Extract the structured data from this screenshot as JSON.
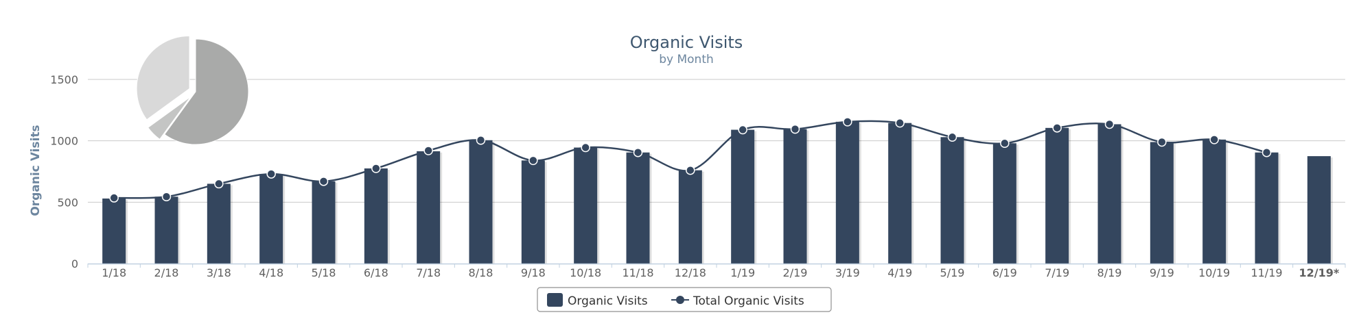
{
  "chart_data": {
    "type": "bar",
    "title": "Organic Visits",
    "subtitle": "by Month",
    "ylabel": "Organic Visits",
    "ylim": [
      0,
      1500
    ],
    "yticks": [
      0,
      500,
      1000,
      1500
    ],
    "grid": true,
    "categories": [
      "1/18",
      "2/18",
      "3/18",
      "4/18",
      "5/18",
      "6/18",
      "7/18",
      "8/18",
      "9/18",
      "10/18",
      "11/18",
      "12/18",
      "1/19",
      "2/19",
      "3/19",
      "4/19",
      "5/19",
      "6/19",
      "7/19",
      "8/19",
      "9/19",
      "10/19",
      "11/19",
      "12/19*"
    ],
    "emphasized_category": "12/19*",
    "series": [
      {
        "name": "Organic Visits",
        "type": "column",
        "color": "#34465e",
        "values": [
          530,
          545,
          650,
          730,
          670,
          775,
          915,
          1005,
          840,
          945,
          905,
          760,
          1090,
          1095,
          1155,
          1145,
          1030,
          980,
          1105,
          1135,
          990,
          1010,
          905,
          875
        ]
      },
      {
        "name": "Total Organic Visits",
        "type": "spline",
        "color": "#34465e",
        "values": [
          535,
          545,
          650,
          730,
          670,
          775,
          920,
          1005,
          840,
          945,
          905,
          760,
          1090,
          1095,
          1155,
          1145,
          1030,
          980,
          1105,
          1135,
          990,
          1010,
          905,
          null
        ]
      }
    ],
    "legend_position": "bottom-center",
    "inset_pie": {
      "slices": [
        {
          "value": 60,
          "color": "#a9aaa9",
          "exploded": false
        },
        {
          "value": 5,
          "color": "#c4c5c4",
          "exploded": true
        },
        {
          "value": 35,
          "color": "#d9d9d9",
          "exploded": true
        }
      ]
    }
  }
}
